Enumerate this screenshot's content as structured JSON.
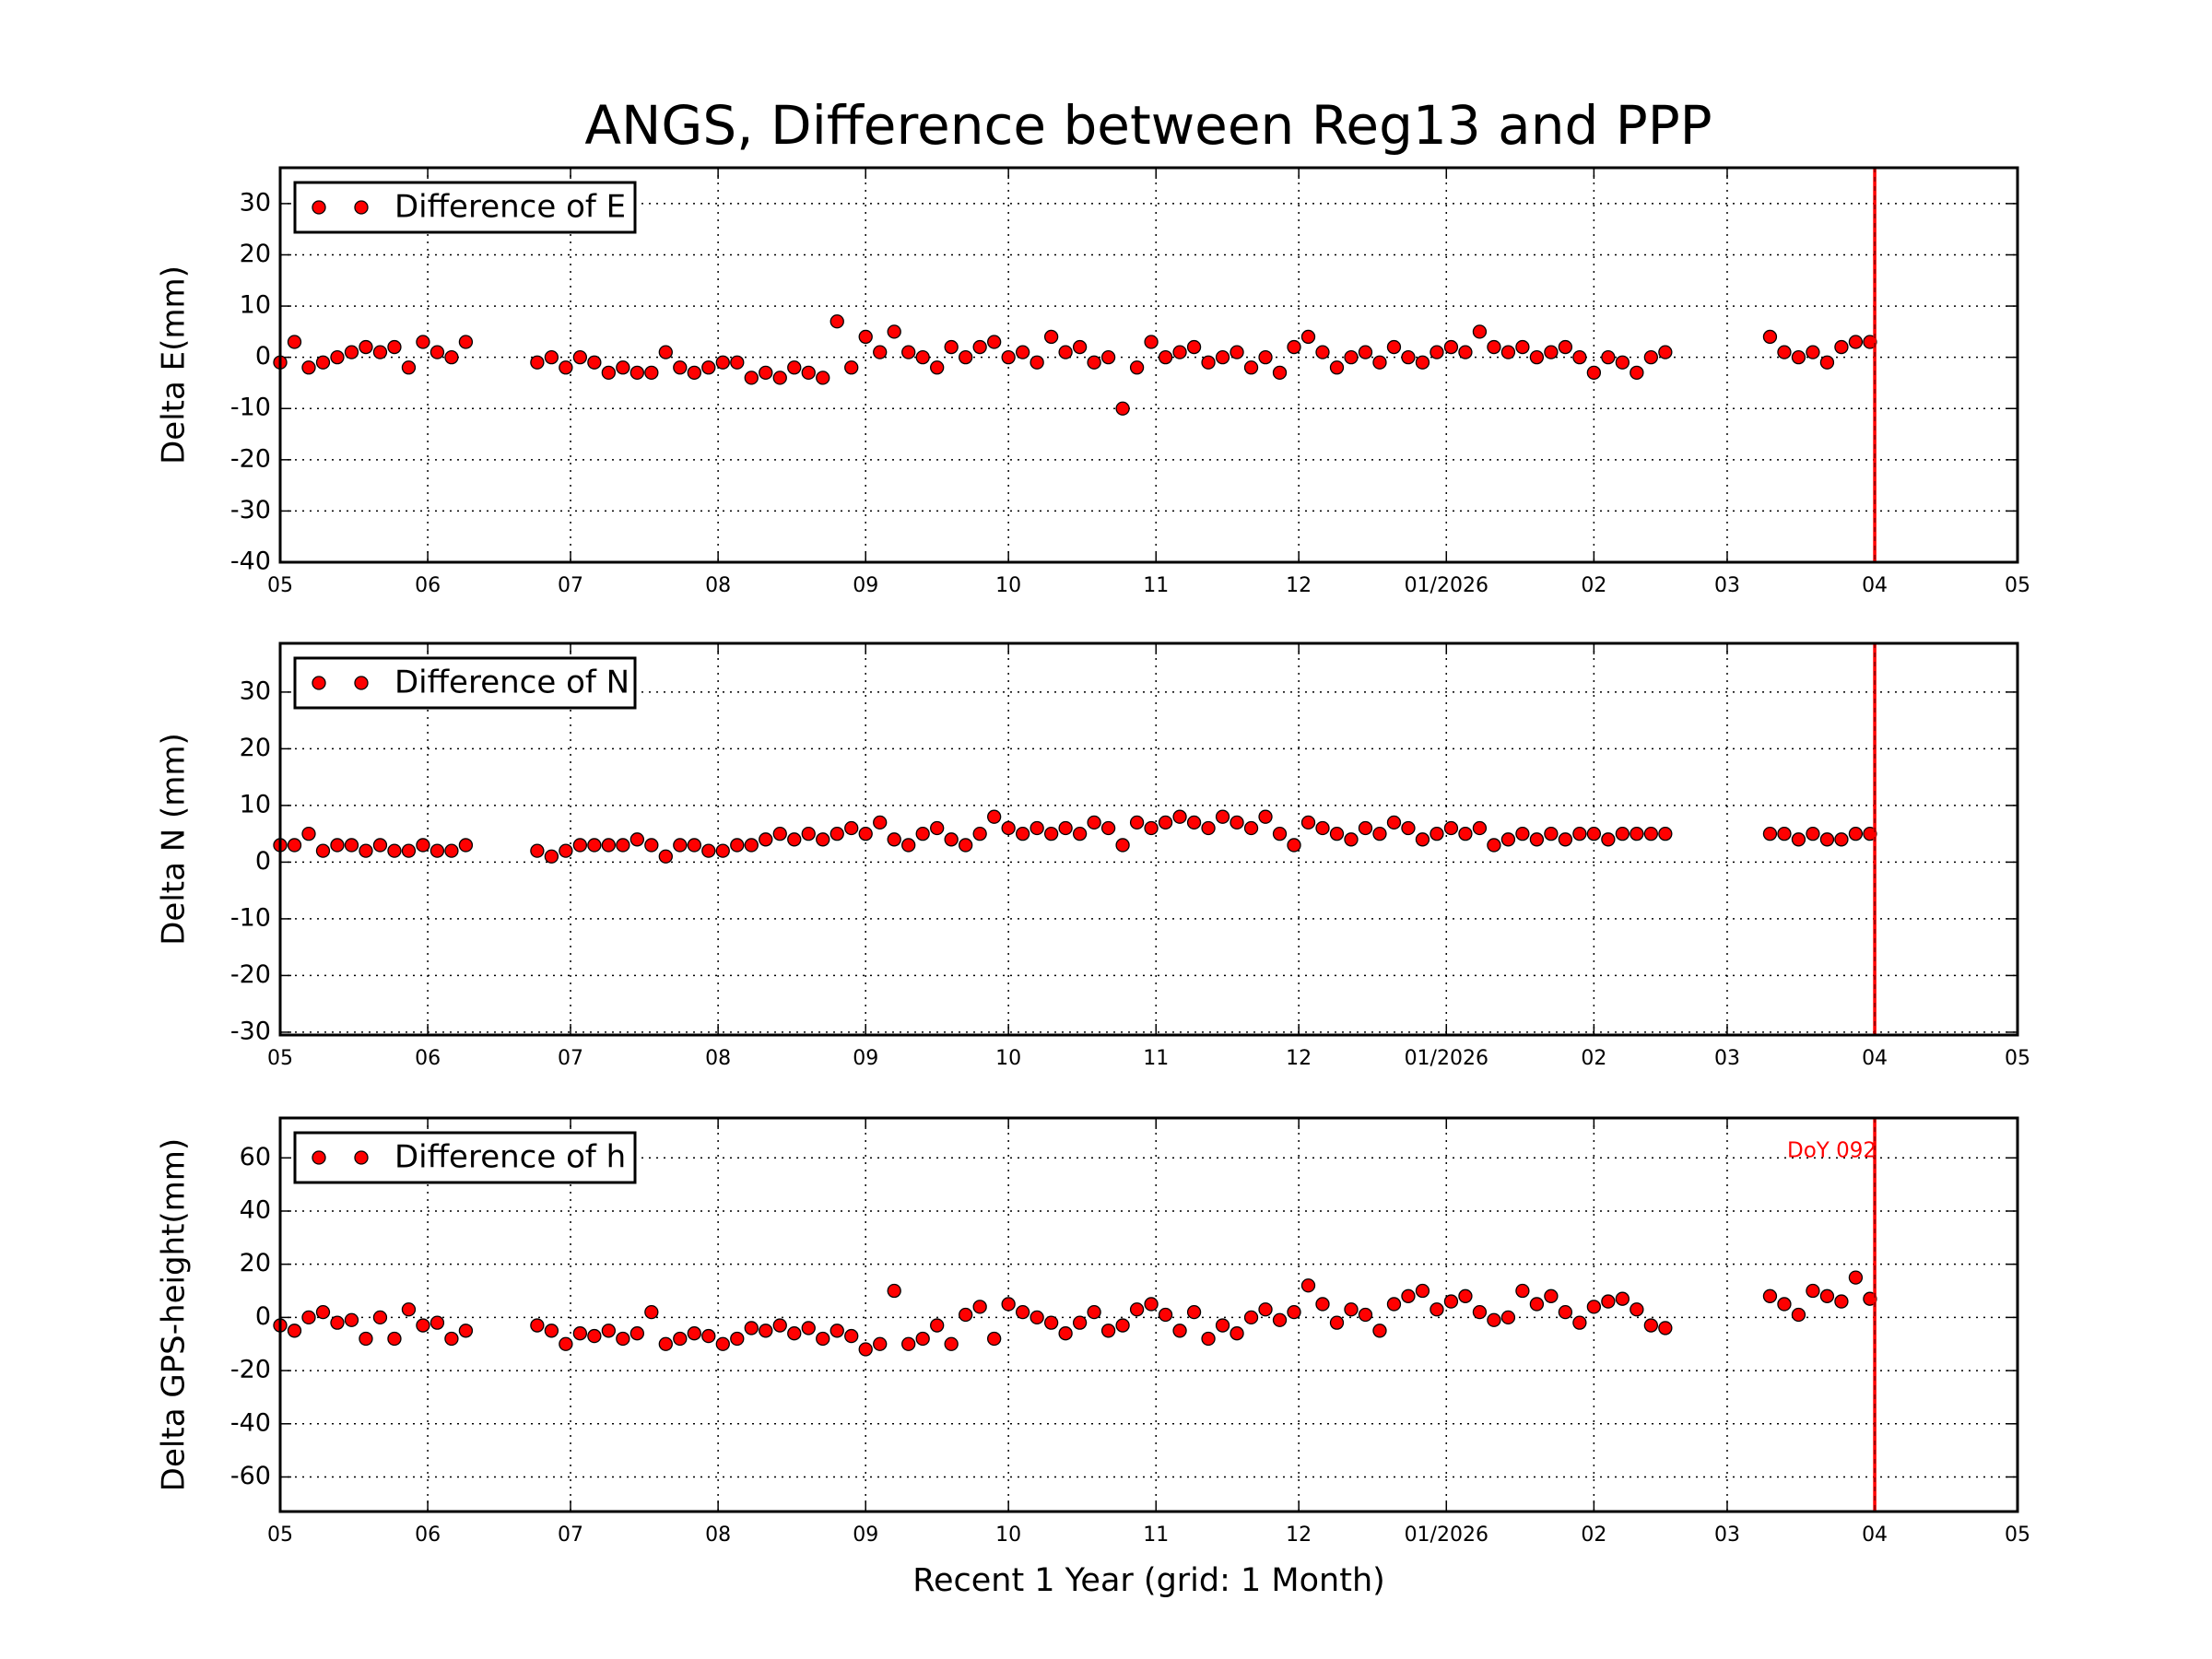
{
  "chart_data": [
    {
      "type": "scatter",
      "title": "ANGS, Difference between Reg13 and PPP",
      "ylabel": "Delta E(mm)",
      "x": [
        0,
        3,
        6,
        9,
        12,
        15,
        18,
        21,
        24,
        27,
        30,
        33,
        36,
        39,
        54,
        57,
        60,
        63,
        66,
        69,
        72,
        75,
        78,
        81,
        84,
        87,
        90,
        93,
        96,
        99,
        102,
        105,
        108,
        111,
        114,
        117,
        120,
        123,
        126,
        129,
        132,
        135,
        138,
        141,
        144,
        147,
        150,
        153,
        156,
        159,
        162,
        165,
        168,
        171,
        174,
        177,
        180,
        183,
        186,
        189,
        192,
        195,
        198,
        201,
        204,
        207,
        210,
        213,
        216,
        219,
        222,
        225,
        228,
        231,
        234,
        237,
        240,
        243,
        246,
        249,
        252,
        255,
        258,
        261,
        264,
        267,
        270,
        273,
        276,
        279,
        282,
        285,
        288,
        291,
        313,
        316,
        319,
        322,
        325,
        328,
        331,
        334
      ],
      "series": [
        {
          "name": "Difference of E",
          "color": "#ff0000",
          "values": [
            -1,
            3,
            -2,
            -1,
            0,
            1,
            2,
            1,
            2,
            -2,
            3,
            1,
            0,
            3,
            -1,
            0,
            -2,
            0,
            -1,
            -3,
            -2,
            -3,
            -3,
            1,
            -2,
            -3,
            -2,
            -1,
            -1,
            -4,
            -3,
            -4,
            -2,
            -3,
            -4,
            7,
            -2,
            4,
            1,
            5,
            1,
            0,
            -2,
            2,
            0,
            2,
            3,
            0,
            1,
            -1,
            4,
            1,
            2,
            -1,
            0,
            -10,
            -2,
            3,
            0,
            1,
            2,
            -1,
            0,
            1,
            -2,
            0,
            -3,
            2,
            4,
            1,
            -2,
            0,
            1,
            -1,
            2,
            0,
            -1,
            1,
            2,
            1,
            5,
            2,
            1,
            2,
            0,
            1,
            2,
            0,
            -3,
            0,
            -1,
            -3,
            0,
            1,
            4,
            1,
            0,
            1,
            -1,
            2,
            3,
            3
          ]
        }
      ],
      "xlim": [
        0,
        365
      ],
      "ylim": [
        -40,
        37
      ],
      "xticks": [
        {
          "value": 0,
          "label": "05"
        },
        {
          "value": 31,
          "label": "06"
        },
        {
          "value": 61,
          "label": "07"
        },
        {
          "value": 92,
          "label": "08"
        },
        {
          "value": 123,
          "label": "09"
        },
        {
          "value": 153,
          "label": "10"
        },
        {
          "value": 184,
          "label": "11"
        },
        {
          "value": 214,
          "label": "12"
        },
        {
          "value": 245,
          "label": "01/2026"
        },
        {
          "value": 276,
          "label": "02"
        },
        {
          "value": 304,
          "label": "03"
        },
        {
          "value": 335,
          "label": "04"
        },
        {
          "value": 365,
          "label": "05"
        }
      ],
      "yticks": [
        -40,
        -30,
        -20,
        -10,
        0,
        10,
        20,
        30
      ],
      "grid": true,
      "legend": "upper left",
      "vline": {
        "x": 335,
        "color": "#ff0000"
      }
    },
    {
      "type": "scatter",
      "ylabel": "Delta N (mm)",
      "x": [
        0,
        3,
        6,
        9,
        12,
        15,
        18,
        21,
        24,
        27,
        30,
        33,
        36,
        39,
        54,
        57,
        60,
        63,
        66,
        69,
        72,
        75,
        78,
        81,
        84,
        87,
        90,
        93,
        96,
        99,
        102,
        105,
        108,
        111,
        114,
        117,
        120,
        123,
        126,
        129,
        132,
        135,
        138,
        141,
        144,
        147,
        150,
        153,
        156,
        159,
        162,
        165,
        168,
        171,
        174,
        177,
        180,
        183,
        186,
        189,
        192,
        195,
        198,
        201,
        204,
        207,
        210,
        213,
        216,
        219,
        222,
        225,
        228,
        231,
        234,
        237,
        240,
        243,
        246,
        249,
        252,
        255,
        258,
        261,
        264,
        267,
        270,
        273,
        276,
        279,
        282,
        285,
        288,
        291,
        313,
        316,
        319,
        322,
        325,
        328,
        331,
        334
      ],
      "series": [
        {
          "name": "Difference of N",
          "color": "#ff0000",
          "values": [
            3,
            3,
            5,
            2,
            3,
            3,
            2,
            3,
            2,
            2,
            3,
            2,
            2,
            3,
            2,
            1,
            2,
            3,
            3,
            3,
            3,
            4,
            3,
            1,
            3,
            3,
            2,
            2,
            3,
            3,
            4,
            5,
            4,
            5,
            4,
            5,
            6,
            5,
            7,
            4,
            3,
            5,
            6,
            4,
            3,
            5,
            8,
            6,
            5,
            6,
            5,
            6,
            5,
            7,
            6,
            3,
            7,
            6,
            7,
            8,
            7,
            6,
            8,
            7,
            6,
            8,
            5,
            3,
            7,
            6,
            5,
            4,
            6,
            5,
            7,
            6,
            4,
            5,
            6,
            5,
            6,
            3,
            4,
            5,
            4,
            5,
            4,
            5,
            5,
            4,
            5,
            5,
            5,
            5,
            5,
            5,
            4,
            5,
            4,
            4,
            5,
            5
          ]
        }
      ],
      "xlim": [
        0,
        365
      ],
      "ylim": [
        -30.5,
        38.6
      ],
      "xticks": [
        {
          "value": 0,
          "label": "05"
        },
        {
          "value": 31,
          "label": "06"
        },
        {
          "value": 61,
          "label": "07"
        },
        {
          "value": 92,
          "label": "08"
        },
        {
          "value": 123,
          "label": "09"
        },
        {
          "value": 153,
          "label": "10"
        },
        {
          "value": 184,
          "label": "11"
        },
        {
          "value": 214,
          "label": "12"
        },
        {
          "value": 245,
          "label": "01/2026"
        },
        {
          "value": 276,
          "label": "02"
        },
        {
          "value": 304,
          "label": "03"
        },
        {
          "value": 335,
          "label": "04"
        },
        {
          "value": 365,
          "label": "05"
        }
      ],
      "yticks": [
        -30,
        -20,
        -10,
        0,
        10,
        20,
        30
      ],
      "grid": true,
      "legend": "upper left",
      "vline": {
        "x": 335,
        "color": "#ff0000"
      }
    },
    {
      "type": "scatter",
      "ylabel": "Delta GPS-height(mm)",
      "xlabel": "Recent 1 Year (grid: 1 Month)",
      "annotation": "DoY 092",
      "x": [
        0,
        3,
        6,
        9,
        12,
        15,
        18,
        21,
        24,
        27,
        30,
        33,
        36,
        39,
        54,
        57,
        60,
        63,
        66,
        69,
        72,
        75,
        78,
        81,
        84,
        87,
        90,
        93,
        96,
        99,
        102,
        105,
        108,
        111,
        114,
        117,
        120,
        123,
        126,
        129,
        132,
        135,
        138,
        141,
        144,
        147,
        150,
        153,
        156,
        159,
        162,
        165,
        168,
        171,
        174,
        177,
        180,
        183,
        186,
        189,
        192,
        195,
        198,
        201,
        204,
        207,
        210,
        213,
        216,
        219,
        222,
        225,
        228,
        231,
        234,
        237,
        240,
        243,
        246,
        249,
        252,
        255,
        258,
        261,
        264,
        267,
        270,
        273,
        276,
        279,
        282,
        285,
        288,
        291,
        313,
        316,
        319,
        322,
        325,
        328,
        331,
        334
      ],
      "series": [
        {
          "name": "Difference of h",
          "color": "#ff0000",
          "values": [
            -3,
            -5,
            0,
            2,
            -2,
            -1,
            -8,
            0,
            -8,
            3,
            -3,
            -2,
            -8,
            -5,
            -3,
            -5,
            -10,
            -6,
            -7,
            -5,
            -8,
            -6,
            2,
            -10,
            -8,
            -6,
            -7,
            -10,
            -8,
            -4,
            -5,
            -3,
            -6,
            -4,
            -8,
            -5,
            -7,
            -12,
            -10,
            10,
            -10,
            -8,
            -3,
            -10,
            1,
            4,
            -8,
            5,
            2,
            0,
            -2,
            -6,
            -2,
            2,
            -5,
            -3,
            3,
            5,
            1,
            -5,
            2,
            -8,
            -3,
            -6,
            0,
            3,
            -1,
            2,
            12,
            5,
            -2,
            3,
            1,
            -5,
            5,
            8,
            10,
            3,
            6,
            8,
            2,
            -1,
            0,
            10,
            5,
            8,
            2,
            -2,
            4,
            6,
            7,
            3,
            -3,
            -4,
            8,
            5,
            1,
            10,
            8,
            6,
            15,
            7
          ]
        }
      ],
      "xlim": [
        0,
        365
      ],
      "ylim": [
        -73,
        75
      ],
      "xticks": [
        {
          "value": 0,
          "label": "05"
        },
        {
          "value": 31,
          "label": "06"
        },
        {
          "value": 61,
          "label": "07"
        },
        {
          "value": 92,
          "label": "08"
        },
        {
          "value": 123,
          "label": "09"
        },
        {
          "value": 153,
          "label": "10"
        },
        {
          "value": 184,
          "label": "11"
        },
        {
          "value": 214,
          "label": "12"
        },
        {
          "value": 245,
          "label": "01/2026"
        },
        {
          "value": 276,
          "label": "02"
        },
        {
          "value": 304,
          "label": "03"
        },
        {
          "value": 335,
          "label": "04"
        },
        {
          "value": 365,
          "label": "05"
        }
      ],
      "yticks": [
        -60,
        -40,
        -20,
        0,
        20,
        40,
        60
      ],
      "grid": true,
      "legend": "upper left",
      "vline": {
        "x": 335,
        "color": "#ff0000"
      }
    }
  ]
}
